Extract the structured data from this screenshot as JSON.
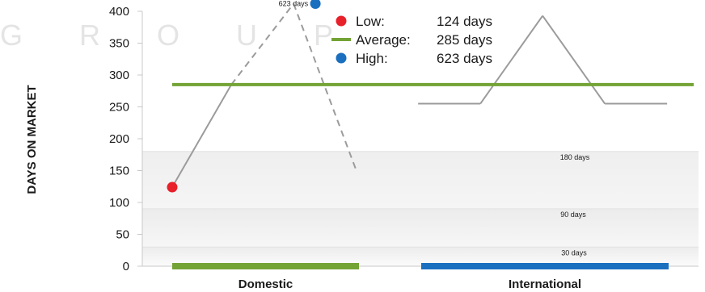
{
  "watermark": "G R O U P",
  "chart_data": {
    "type": "line",
    "ylabel": "DAYS ON MARKET",
    "ylim": [
      0,
      400
    ],
    "yticks": [
      0,
      50,
      100,
      150,
      200,
      250,
      300,
      350,
      400
    ],
    "categories": [
      "Domestic",
      "International"
    ],
    "series": [
      {
        "name": "Domestic",
        "color": "#9b9b9b",
        "dashed_after_index": 1,
        "points": [
          [
            0,
            124
          ],
          [
            0.95,
            285
          ],
          [
            1.95,
            412
          ],
          [
            2.95,
            152
          ]
        ]
      },
      {
        "name": "International",
        "color": "#9b9b9b",
        "points": [
          [
            3.95,
            255
          ],
          [
            4.95,
            255
          ],
          [
            5.95,
            393
          ],
          [
            6.95,
            255
          ],
          [
            7.95,
            255
          ]
        ]
      }
    ],
    "average": {
      "value": 285,
      "color": "#73a335"
    },
    "markers": [
      {
        "kind": "low",
        "point": [
          0,
          124
        ],
        "color": "#e8202a"
      },
      {
        "kind": "high",
        "point": [
          2.3,
          412
        ],
        "color": "#1a6fbf",
        "label": "623 days"
      }
    ],
    "legend": {
      "placement": "top-center",
      "items": [
        {
          "label": "Low:",
          "value": "124 days",
          "swatch": "dot",
          "color": "#e8202a"
        },
        {
          "label": "Average:",
          "value": "285 days",
          "swatch": "line",
          "color": "#73a335"
        },
        {
          "label": "High:",
          "value": "623 days",
          "swatch": "dot",
          "color": "#1a6fbf"
        }
      ]
    },
    "bands": [
      {
        "label": "180 days",
        "from": 0,
        "to": 180
      },
      {
        "label": "90 days",
        "from": 0,
        "to": 90
      },
      {
        "label": "30 days",
        "from": 0,
        "to": 30
      }
    ],
    "category_bars": [
      {
        "category": "Domestic",
        "color": "#73a335",
        "from": 0,
        "to": 3
      },
      {
        "category": "International",
        "color": "#1a6fbf",
        "from": 4,
        "to": 8
      }
    ]
  }
}
